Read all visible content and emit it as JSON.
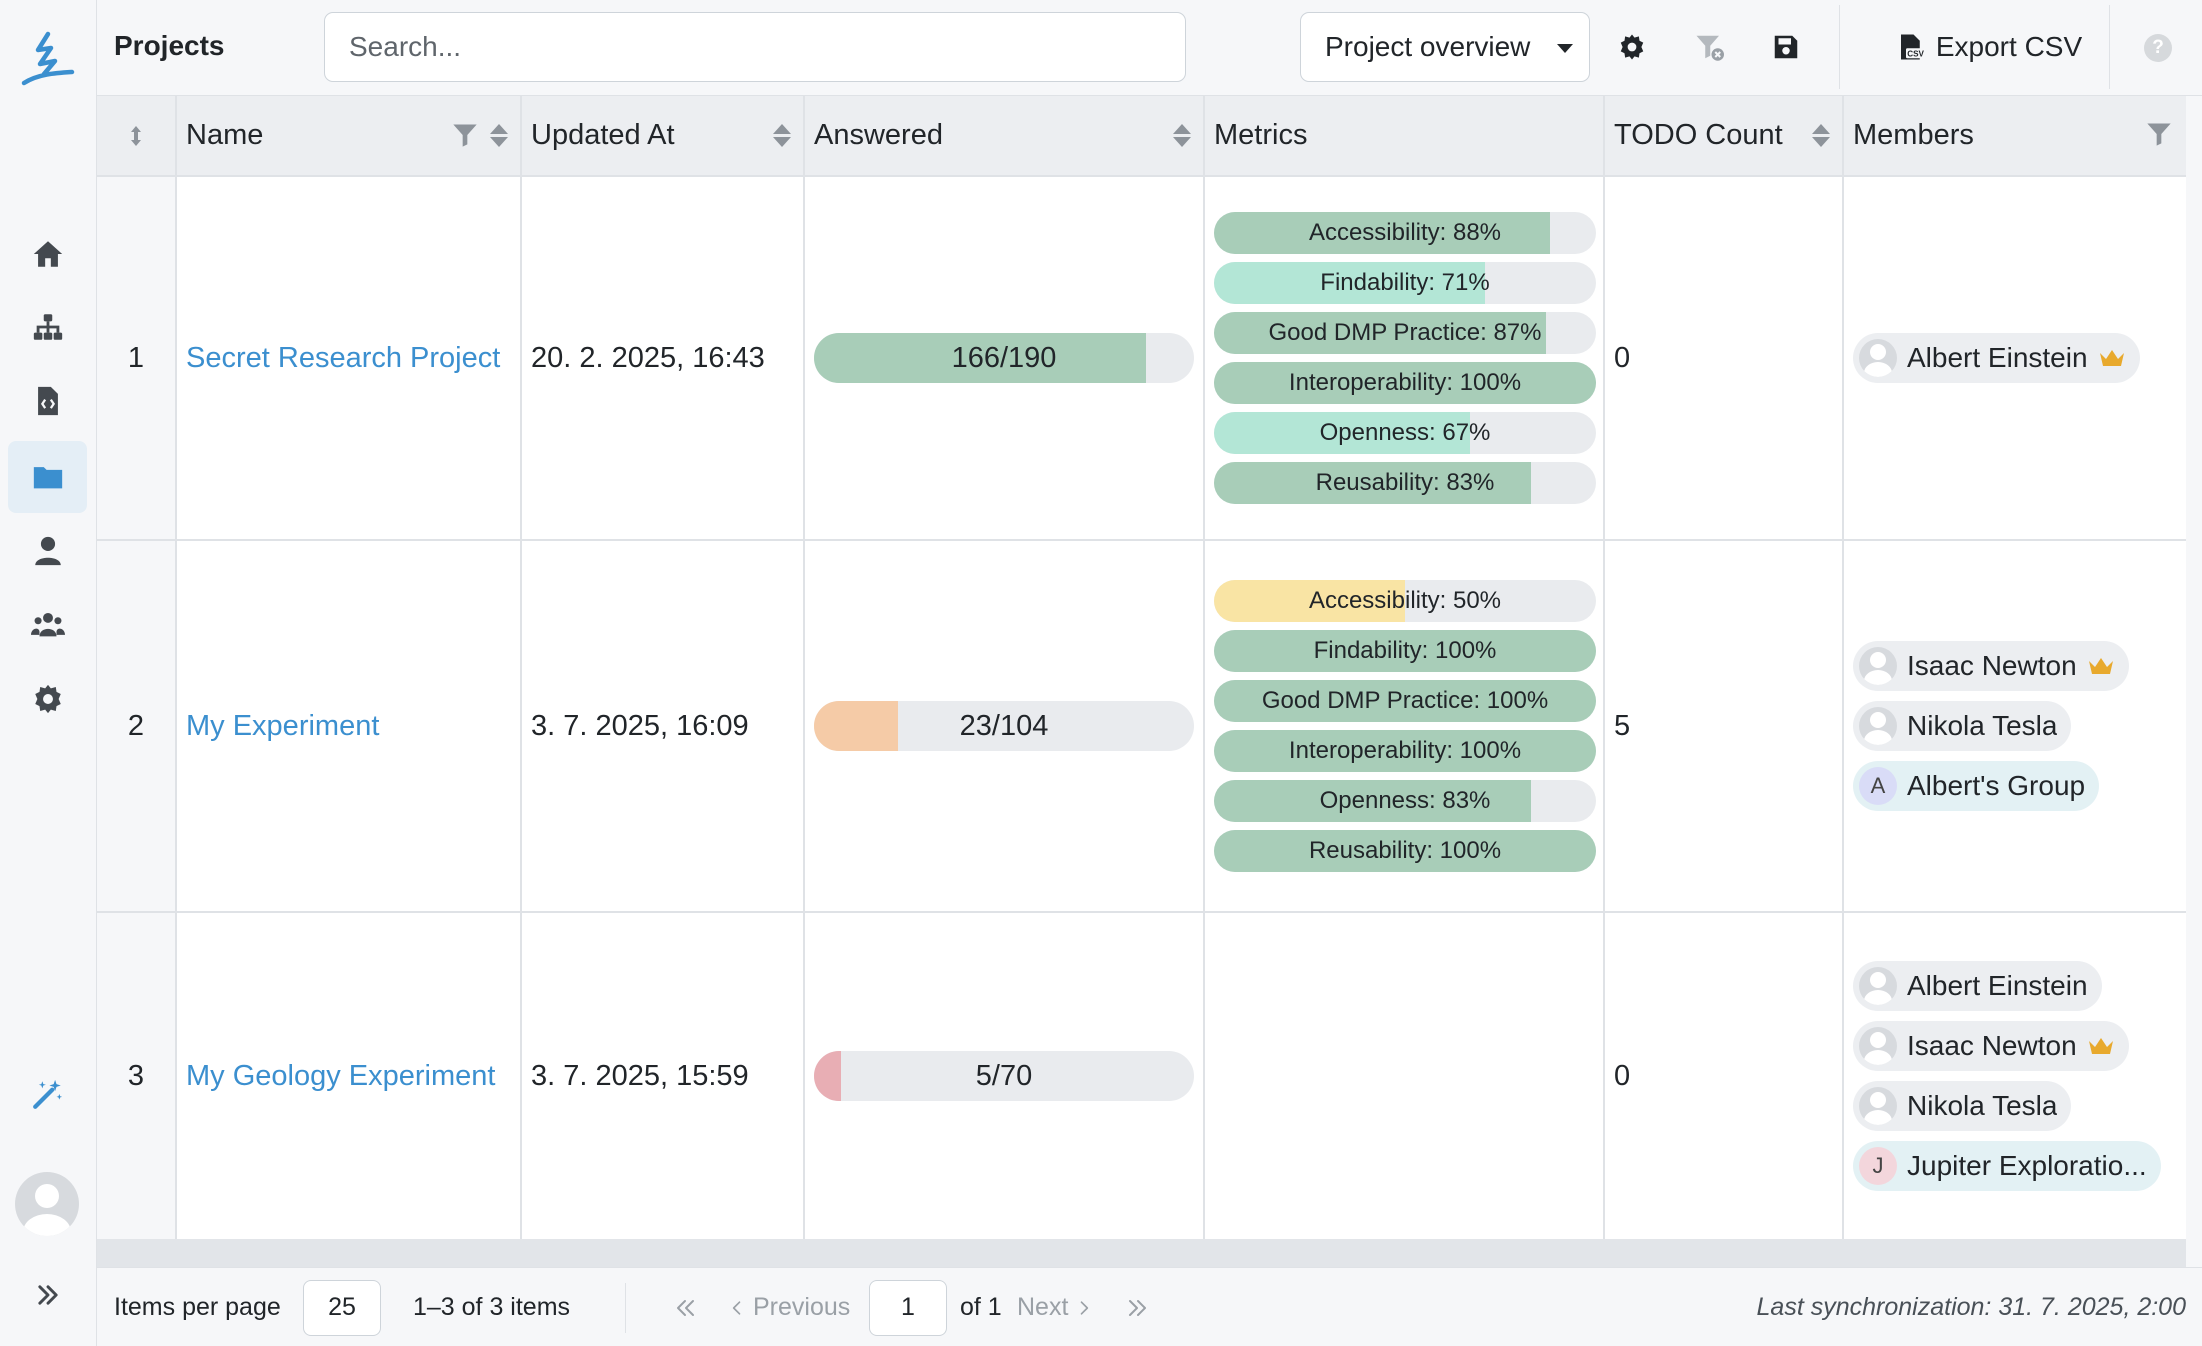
{
  "header": {
    "title": "Projects",
    "search_placeholder": "Search...",
    "view_select": "Project overview",
    "export_label": "Export CSV",
    "help": "?"
  },
  "table": {
    "columns": [
      "",
      "Name",
      "Updated At",
      "Answered",
      "Metrics",
      "TODO Count",
      "Members"
    ],
    "rows": [
      {
        "index": "1",
        "name": "Secret Research Project",
        "updated_at": "20. 2. 2025, 16:43",
        "answered": "166/190",
        "answered_fraction": 0.874,
        "answered_color": "#a8cdb8",
        "metrics": [
          {
            "label": "Accessibility: 88%",
            "value": 0.88,
            "color": "#a8cdb8"
          },
          {
            "label": "Findability: 71%",
            "value": 0.71,
            "color": "#b3e6d6"
          },
          {
            "label": "Good DMP Practice: 87%",
            "value": 0.87,
            "color": "#a8cdb8"
          },
          {
            "label": "Interoperability: 100%",
            "value": 1.0,
            "color": "#a8cdb8"
          },
          {
            "label": "Openness: 67%",
            "value": 0.67,
            "color": "#b3e6d6"
          },
          {
            "label": "Reusability: 83%",
            "value": 0.83,
            "color": "#a8cdb8"
          }
        ],
        "todo": "0",
        "members": [
          {
            "name": "Albert Einstein",
            "owner": true,
            "type": "user"
          }
        ]
      },
      {
        "index": "2",
        "name": "My Experiment",
        "updated_at": "3. 7. 2025, 16:09",
        "answered": "23/104",
        "answered_fraction": 0.221,
        "answered_color": "#f5cba7",
        "metrics": [
          {
            "label": "Accessibility: 50%",
            "value": 0.5,
            "color": "#f9e4a4"
          },
          {
            "label": "Findability: 100%",
            "value": 1.0,
            "color": "#a8cdb8"
          },
          {
            "label": "Good DMP Practice: 100%",
            "value": 1.0,
            "color": "#a8cdb8"
          },
          {
            "label": "Interoperability: 100%",
            "value": 1.0,
            "color": "#a8cdb8"
          },
          {
            "label": "Openness: 83%",
            "value": 0.83,
            "color": "#a8cdb8"
          },
          {
            "label": "Reusability: 100%",
            "value": 1.0,
            "color": "#a8cdb8"
          }
        ],
        "todo": "5",
        "members": [
          {
            "name": "Isaac Newton",
            "owner": true,
            "type": "user"
          },
          {
            "name": "Nikola Tesla",
            "owner": false,
            "type": "user"
          },
          {
            "name": "Albert's Group",
            "owner": false,
            "type": "group",
            "initial": "A",
            "initial_color": "#d9dcf7"
          }
        ]
      },
      {
        "index": "3",
        "name": "My Geology Experiment",
        "updated_at": "3. 7. 2025, 15:59",
        "answered": "5/70",
        "answered_fraction": 0.071,
        "answered_color": "#e8aeb4",
        "metrics": [],
        "todo": "0",
        "members": [
          {
            "name": "Albert Einstein",
            "owner": false,
            "type": "user"
          },
          {
            "name": "Isaac Newton",
            "owner": true,
            "type": "user"
          },
          {
            "name": "Nikola Tesla",
            "owner": false,
            "type": "user"
          },
          {
            "name": "Jupiter Exploratio...",
            "owner": false,
            "type": "group",
            "initial": "J",
            "initial_color": "#f3d6dc"
          }
        ]
      }
    ]
  },
  "footer": {
    "items_per_page_label": "Items per page",
    "items_per_page_value": "25",
    "range": "1–3 of 3 items",
    "previous": "Previous",
    "page": "1",
    "of_pages": "of 1",
    "next": "Next",
    "last_sync": "Last synchronization: 31. 7. 2025, 2:00"
  },
  "colors": {
    "accent": "#3b8fcf",
    "crown": "#e8a92d",
    "logo": "#3b8fcf"
  },
  "icons": {
    "sidebar": [
      "home-icon",
      "sitemap-icon",
      "file-code-icon",
      "folder-icon",
      "user-icon",
      "users-icon",
      "gear-icon",
      "magic-wand-icon"
    ],
    "toolbar": [
      "gear-icon",
      "filter-clear-icon",
      "save-icon",
      "csv-file-icon",
      "help-icon"
    ]
  }
}
